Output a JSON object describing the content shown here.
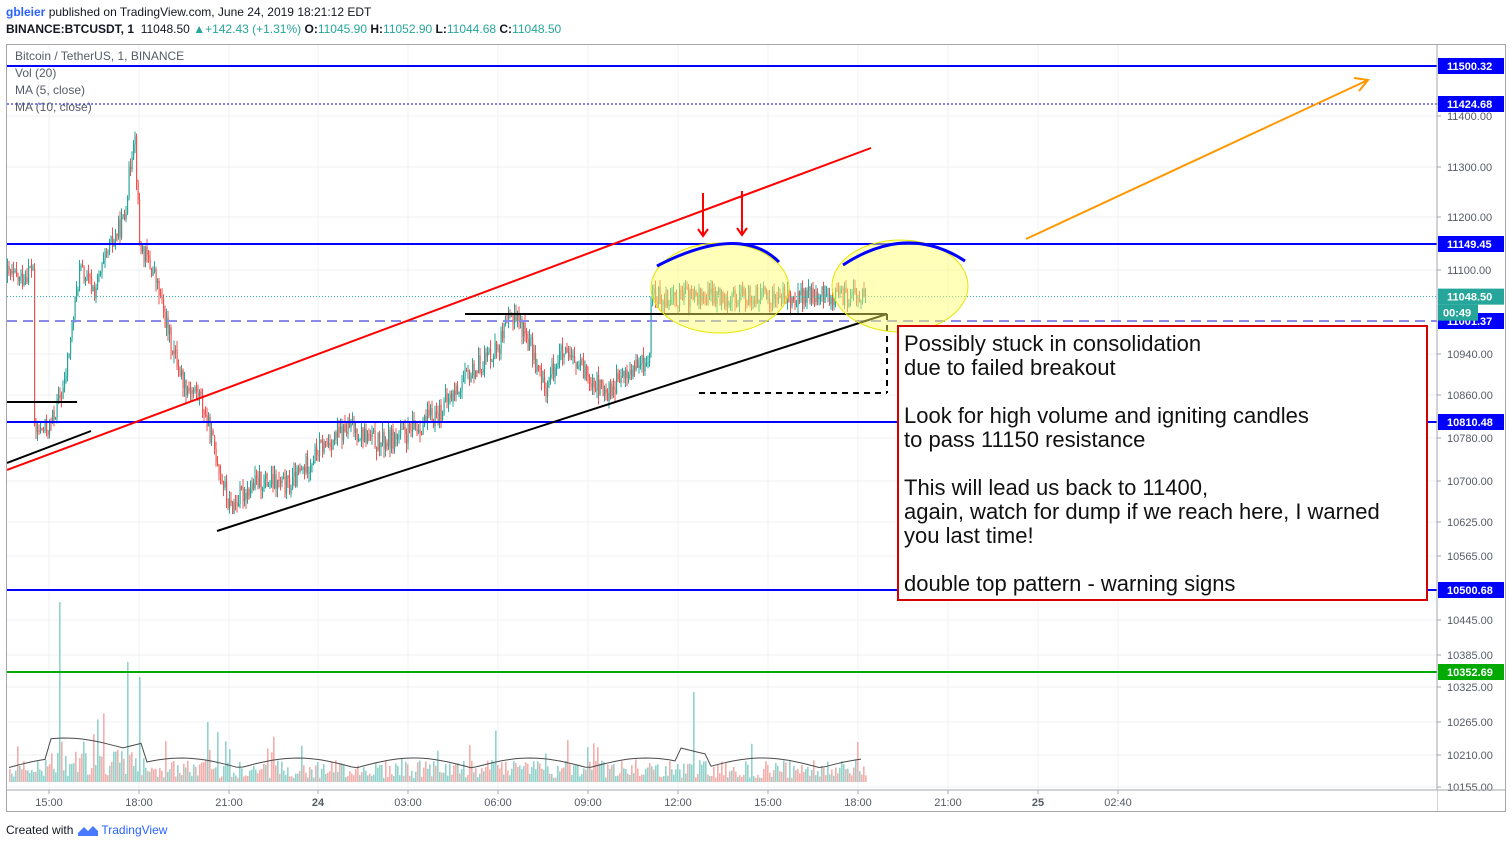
{
  "header": {
    "user": "gbleier",
    "published": " published on TradingView.com, June 24, 2019 18:21:12 EDT",
    "symbol": "BINANCE:BTCUSDT, 1",
    "last": "11048.50",
    "change": "▲+142.43 (+1.31%)",
    "o_label": "O:",
    "o": "11045.90",
    "h_label": "H:",
    "h": "11052.90",
    "l_label": "L:",
    "l": "11044.68",
    "c_label": "C:",
    "c": "11048.50"
  },
  "legend": {
    "title": "Bitcoin / TetherUS, 1, BINANCE",
    "vol": "Vol (20)",
    "ma5": "MA (5, close)",
    "ma10": "MA (10, close)"
  },
  "annotation": {
    "lines": [
      "Possibly stuck in consolidation",
      "due to failed breakout",
      "",
      "Look for high volume and igniting candles",
      "to pass 11150 resistance",
      "",
      "This will lead us back to 11400,",
      "again, watch for dump if we reach here, I warned",
      "you last time!",
      "",
      "double top pattern - warning signs"
    ]
  },
  "countdown": "00:49",
  "footer": {
    "created": "Created with",
    "brand": "TradingView"
  },
  "chart_data": {
    "type": "candlestick",
    "title": "Bitcoin / TetherUS, 1, BINANCE",
    "x_ticks": [
      "15:00",
      "18:00",
      "21:00",
      "24",
      "03:00",
      "06:00",
      "09:00",
      "12:00",
      "15:00",
      "18:00",
      "21:00",
      "25",
      "02:40"
    ],
    "y_ticks": [
      11400.0,
      11300.0,
      11200.0,
      11100.0,
      10940.0,
      10860.0,
      10780.0,
      10700.0,
      10625.0,
      10565.0,
      10445.0,
      10385.0,
      10325.0,
      10265.0,
      10210.0,
      10155.0
    ],
    "y_tick_labels": [
      "11400.00",
      "11300.00",
      "11200.00",
      "11100.00",
      "10940.00",
      "10860.00",
      "10780.00",
      "10700.00",
      "10625.00",
      "10565.00",
      "10445.00",
      "10385.00",
      "10325.00",
      "10265.00",
      "10210.00",
      "10155.00"
    ],
    "horizontal_levels": [
      {
        "value": 11500.32,
        "label": "11500.32",
        "color": "#0000ff",
        "style": "solid"
      },
      {
        "value": 11424.68,
        "label": "11424.68",
        "color": "#0000ff",
        "style": "dotted"
      },
      {
        "value": 11149.45,
        "label": "11149.45",
        "color": "#0000ff",
        "style": "solid"
      },
      {
        "value": 11048.5,
        "label": "11048.50",
        "color": "#26a69a",
        "style": "last-price"
      },
      {
        "value": 11001.37,
        "label": "11001.37",
        "color": "#0000ff",
        "style": "dashed"
      },
      {
        "value": 10810.48,
        "label": "10810.48",
        "color": "#0000ff",
        "style": "solid"
      },
      {
        "value": 10500.68,
        "label": "10500.68",
        "color": "#0000ff",
        "style": "solid"
      },
      {
        "value": 10352.69,
        "label": "10352.69",
        "color": "#00aa00",
        "style": "solid"
      }
    ],
    "price_path": [
      [
        "14:30",
        10790
      ],
      [
        "15:00",
        10800
      ],
      [
        "15:30",
        10880
      ],
      [
        "16:00",
        11100
      ],
      [
        "16:30",
        11060
      ],
      [
        "17:00",
        11140
      ],
      [
        "17:30",
        11200
      ],
      [
        "17:50",
        11380
      ],
      [
        "18:00",
        11150
      ],
      [
        "18:30",
        11090
      ],
      [
        "19:00",
        10970
      ],
      [
        "19:30",
        10880
      ],
      [
        "20:00",
        10860
      ],
      [
        "20:30",
        10760
      ],
      [
        "21:00",
        10650
      ],
      [
        "21:30",
        10680
      ],
      [
        "22:00",
        10700
      ],
      [
        "23:00",
        10690
      ],
      [
        "24:00",
        10760
      ],
      [
        "01:00",
        10800
      ],
      [
        "02:00",
        10770
      ],
      [
        "03:00",
        10790
      ],
      [
        "04:00",
        10830
      ],
      [
        "05:00",
        10900
      ],
      [
        "06:00",
        10960
      ],
      [
        "06:30",
        11020
      ],
      [
        "07:00",
        10960
      ],
      [
        "07:30",
        10870
      ],
      [
        "08:00",
        10940
      ],
      [
        "09:00",
        10900
      ],
      [
        "09:30",
        10860
      ],
      [
        "10:00",
        10890
      ],
      [
        "11:00",
        10930
      ],
      [
        "12:00",
        10990
      ],
      [
        "12:30",
        11090
      ],
      [
        "13:00",
        11110
      ],
      [
        "14:00",
        11080
      ],
      [
        "14:30",
        11110
      ],
      [
        "15:00",
        11060
      ],
      [
        "15:30",
        10900
      ],
      [
        "16:00",
        10960
      ],
      [
        "16:30",
        10880
      ],
      [
        "17:00",
        10950
      ],
      [
        "17:30",
        10990
      ],
      [
        "18:00",
        11020
      ],
      [
        "18:15",
        11060
      ],
      [
        "18:21",
        11048.5
      ]
    ],
    "volume": "Vol (20)",
    "moving_averages": [
      "MA (5, close)",
      "MA (10, close)"
    ]
  }
}
